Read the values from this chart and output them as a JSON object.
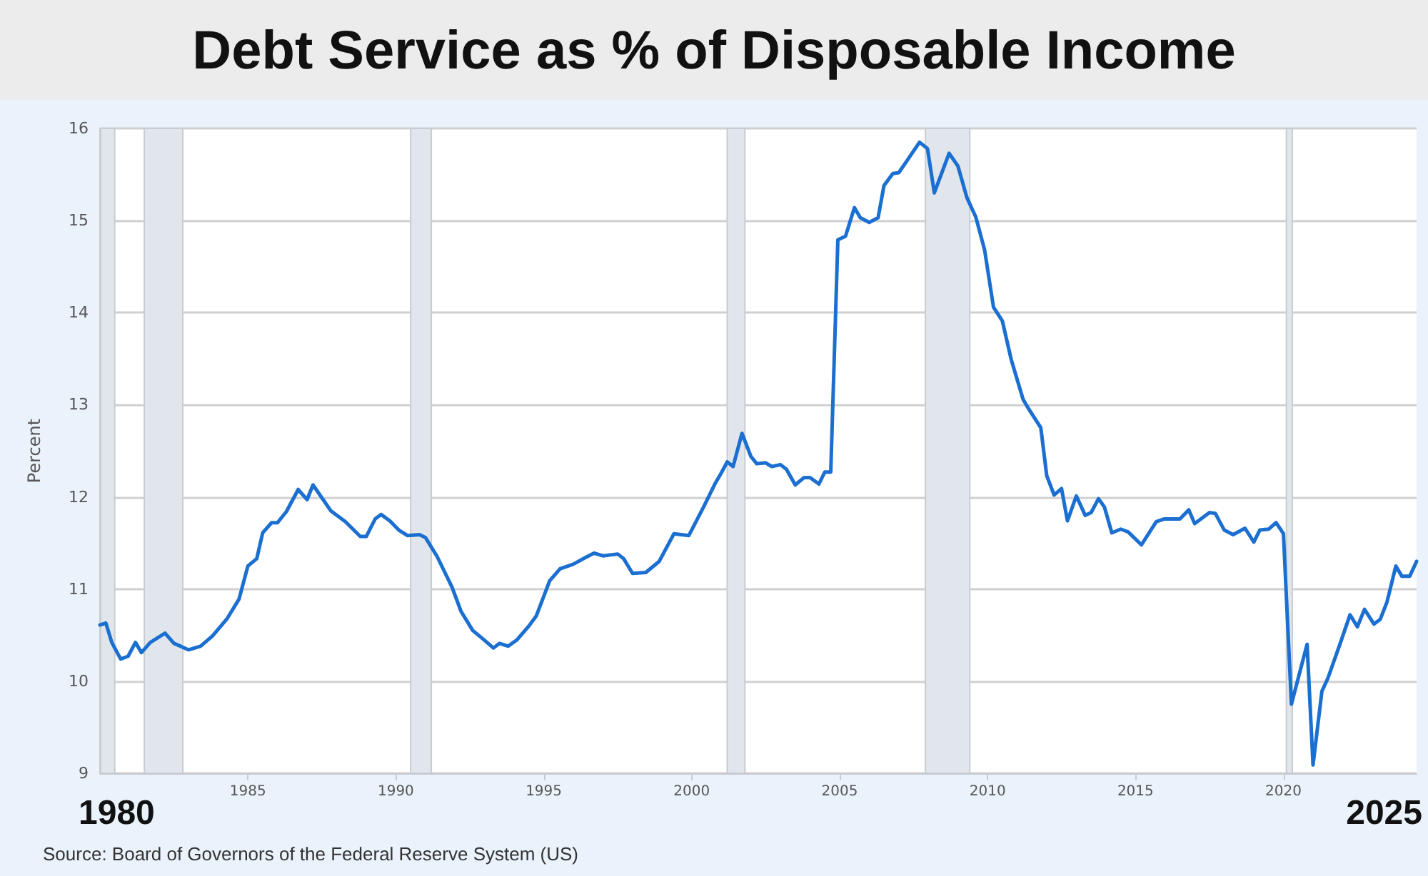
{
  "chart_data": {
    "type": "line",
    "title": "Debt Service as % of Disposable Income",
    "ylabel": "Percent",
    "color": "#1b6fd0",
    "grid": "y",
    "marker": "none",
    "line_style": "solid",
    "x": [
      1980.0,
      1980.2,
      1980.4,
      1980.7,
      1980.95,
      1981.2,
      1981.4,
      1981.7,
      1982.2,
      1982.5,
      1983.0,
      1983.4,
      1983.8,
      1984.3,
      1984.7,
      1985.0,
      1985.3,
      1985.5,
      1985.8,
      1986.0,
      1986.3,
      1986.7,
      1987.0,
      1987.2,
      1987.8,
      1988.3,
      1988.8,
      1989.0,
      1989.3,
      1989.5,
      1989.8,
      1990.1,
      1990.4,
      1990.8,
      1991.0,
      1991.4,
      1991.9,
      1992.2,
      1992.6,
      1992.9,
      1993.3,
      1993.5,
      1993.8,
      1994.1,
      1994.5,
      1994.75,
      1995.2,
      1995.55,
      1996.0,
      1996.4,
      1996.7,
      1997.0,
      1997.5,
      1997.7,
      1998.0,
      1998.45,
      1998.9,
      1999.4,
      1999.9,
      2000.4,
      2000.8,
      2001.0,
      2001.2,
      2001.4,
      2001.7,
      2002.0,
      2002.2,
      2002.5,
      2002.7,
      2003.0,
      2003.2,
      2003.5,
      2003.8,
      2004.0,
      2004.3,
      2004.5,
      2004.7,
      2004.94,
      2005.2,
      2005.5,
      2005.7,
      2006.0,
      2006.3,
      2006.5,
      2006.8,
      2007.0,
      2007.3,
      2007.7,
      2007.97,
      2008.2,
      2008.7,
      2009.0,
      2009.3,
      2009.6,
      2009.9,
      2010.2,
      2010.5,
      2010.8,
      2011.2,
      2011.4,
      2011.8,
      2012.0,
      2012.25,
      2012.5,
      2012.7,
      2013.0,
      2013.3,
      2013.5,
      2013.75,
      2013.95,
      2014.2,
      2014.5,
      2014.75,
      2015.2,
      2015.7,
      2015.96,
      2016.5,
      2016.8,
      2017.0,
      2017.5,
      2017.7,
      2018.0,
      2018.3,
      2018.7,
      2019.0,
      2019.2,
      2019.5,
      2019.75,
      2020.0,
      2020.27,
      2020.8,
      2021.0,
      2021.3,
      2021.5,
      2021.93,
      2022.25,
      2022.5,
      2022.74,
      2023.06,
      2023.27,
      2023.5,
      2023.8,
      2024.0,
      2024.27,
      2024.5
    ],
    "values": [
      10.61,
      10.63,
      10.42,
      10.24,
      10.27,
      10.42,
      10.31,
      10.42,
      10.52,
      10.41,
      10.34,
      10.38,
      10.49,
      10.68,
      10.89,
      11.25,
      11.33,
      11.61,
      11.72,
      11.72,
      11.84,
      12.08,
      11.97,
      12.13,
      11.85,
      11.73,
      11.57,
      11.57,
      11.76,
      11.81,
      11.74,
      11.64,
      11.58,
      11.59,
      11.56,
      11.35,
      11.02,
      10.76,
      10.55,
      10.47,
      10.36,
      10.41,
      10.38,
      10.45,
      10.6,
      10.71,
      11.09,
      11.22,
      11.27,
      11.34,
      11.39,
      11.36,
      11.38,
      11.33,
      11.17,
      11.18,
      11.3,
      11.6,
      11.58,
      11.89,
      12.15,
      12.26,
      12.38,
      12.33,
      12.69,
      12.44,
      12.36,
      12.37,
      12.33,
      12.35,
      12.3,
      12.13,
      12.21,
      12.21,
      12.14,
      12.27,
      12.27,
      14.79,
      14.83,
      15.14,
      15.03,
      14.98,
      15.03,
      15.38,
      15.51,
      15.52,
      15.66,
      15.85,
      15.78,
      15.3,
      15.73,
      15.59,
      15.25,
      15.04,
      14.68,
      14.06,
      13.91,
      13.49,
      13.06,
      12.95,
      12.75,
      12.23,
      12.02,
      12.09,
      11.74,
      12.01,
      11.8,
      11.83,
      11.98,
      11.89,
      11.61,
      11.65,
      11.62,
      11.48,
      11.73,
      11.76,
      11.76,
      11.86,
      11.71,
      11.83,
      11.82,
      11.64,
      11.59,
      11.66,
      11.51,
      11.64,
      11.65,
      11.72,
      11.6,
      9.75,
      10.4,
      9.09,
      9.89,
      10.03,
      10.42,
      10.72,
      10.59,
      10.78,
      10.62,
      10.67,
      10.86,
      11.25,
      11.14,
      11.14,
      11.3
    ],
    "xlim": [
      1980,
      2024.5
    ],
    "xticks": [
      1985,
      1990,
      1995,
      2000,
      2005,
      2010,
      2015,
      2020
    ],
    "ylim": [
      9,
      16
    ],
    "yticks": [
      9,
      10,
      11,
      12,
      13,
      14,
      15,
      16
    ],
    "bands": [
      {
        "axis": "x",
        "from": 1980,
        "to": 1980.5,
        "color": "#e1e6ec"
      },
      {
        "axis": "x",
        "from": 1981.5,
        "to": 1982.8,
        "color": "#e1e6ec"
      },
      {
        "axis": "x",
        "from": 1990.5,
        "to": 1991.2,
        "color": "#e1e6ec"
      },
      {
        "axis": "x",
        "from": 2001.2,
        "to": 2001.8,
        "color": "#e1e6ec"
      },
      {
        "axis": "x",
        "from": 2007.9,
        "to": 2009.4,
        "color": "#e1e6ec"
      },
      {
        "axis": "x",
        "from": 2020.1,
        "to": 2020.3,
        "color": "#e1e6ec"
      }
    ],
    "annotations": [
      "1980",
      "2025",
      "Source: Board of Governors of the Federal Reserve System (US)"
    ]
  }
}
